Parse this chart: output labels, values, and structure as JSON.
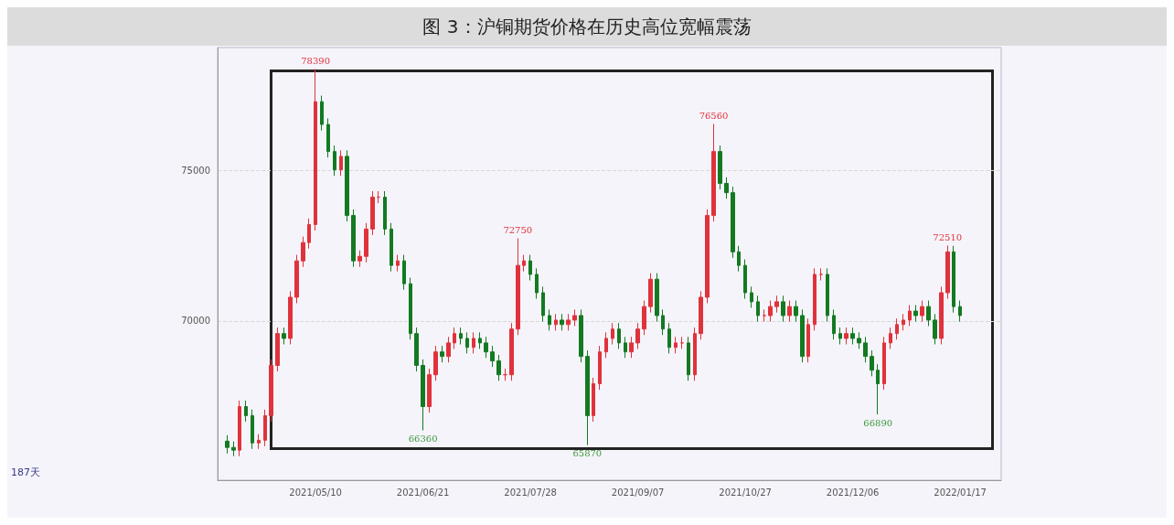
{
  "chart_data": {
    "type": "candlestick",
    "title": "图 3：沪铜期货价格在历史高位宽幅震荡",
    "categories": [
      null,
      null,
      null,
      null,
      null,
      null,
      null,
      null,
      null,
      null,
      null,
      null,
      null,
      null,
      "2021/05/10",
      null,
      null,
      null,
      null,
      null,
      null,
      null,
      null,
      null,
      null,
      null,
      null,
      null,
      null,
      null,
      null,
      "2021/06/21",
      null,
      null,
      null,
      null,
      null,
      null,
      null,
      null,
      null,
      null,
      null,
      null,
      null,
      null,
      null,
      null,
      "2021/07/28",
      null,
      null,
      null,
      null,
      null,
      null,
      null,
      null,
      null,
      null,
      null,
      null,
      null,
      null,
      null,
      null,
      "2021/09/07",
      null,
      null,
      null,
      null,
      null,
      null,
      null,
      null,
      null,
      null,
      null,
      null,
      null,
      null,
      null,
      null,
      "2021/10/27",
      null,
      null,
      null,
      null,
      null,
      null,
      null,
      null,
      null,
      null,
      null,
      null,
      null,
      null,
      null,
      null,
      "2021/12/06",
      null,
      null,
      null,
      null,
      null,
      null,
      null,
      null,
      null,
      null,
      null,
      null,
      null,
      null,
      null,
      null,
      "2022/01/17"
    ],
    "ohlc": [
      [
        66000,
        66200,
        65590,
        65790
      ],
      [
        65790,
        65990,
        65500,
        65700
      ],
      [
        65700,
        67350,
        65500,
        67150
      ],
      [
        67150,
        67350,
        66650,
        66850
      ],
      [
        66850,
        67050,
        65740,
        65940
      ],
      [
        65940,
        66230,
        65740,
        66030
      ],
      [
        66030,
        67050,
        65830,
        66850
      ],
      [
        66850,
        68720,
        66650,
        68520
      ],
      [
        68520,
        69780,
        68320,
        69580
      ],
      [
        69580,
        69780,
        69220,
        69420
      ],
      [
        69420,
        70990,
        69220,
        70790
      ],
      [
        70790,
        72200,
        70590,
        72000
      ],
      [
        72000,
        72810,
        71800,
        72610
      ],
      [
        72610,
        73410,
        72410,
        73210
      ],
      [
        73210,
        78390,
        73010,
        77300
      ],
      [
        77300,
        77500,
        76340,
        76540
      ],
      [
        76540,
        76740,
        75440,
        75640
      ],
      [
        75640,
        75840,
        74830,
        75030
      ],
      [
        75030,
        75680,
        74830,
        75480
      ],
      [
        75480,
        75680,
        73310,
        73510
      ],
      [
        73510,
        73710,
        71800,
        72000
      ],
      [
        72000,
        72350,
        71800,
        72150
      ],
      [
        72150,
        73260,
        71950,
        73060
      ],
      [
        73060,
        74320,
        72860,
        74120
      ],
      [
        74120,
        74320,
        73920,
        74120
      ],
      [
        74120,
        74320,
        72860,
        73060
      ],
      [
        73060,
        73260,
        71650,
        71850
      ],
      [
        71850,
        72200,
        71650,
        72000
      ],
      [
        72000,
        72200,
        71040,
        71240
      ],
      [
        71240,
        71440,
        69380,
        69580
      ],
      [
        69580,
        69780,
        68320,
        68520
      ],
      [
        68520,
        68720,
        66360,
        67150
      ],
      [
        67150,
        68410,
        66950,
        68210
      ],
      [
        68210,
        69170,
        68010,
        68970
      ],
      [
        68970,
        69170,
        68620,
        68820
      ],
      [
        68820,
        69470,
        68620,
        69270
      ],
      [
        69270,
        69780,
        69070,
        69580
      ],
      [
        69580,
        69780,
        69220,
        69420
      ],
      [
        69420,
        69620,
        68920,
        69120
      ],
      [
        69120,
        69620,
        68920,
        69420
      ],
      [
        69420,
        69620,
        69070,
        69270
      ],
      [
        69270,
        69470,
        68770,
        68970
      ],
      [
        68970,
        69170,
        68470,
        68670
      ],
      [
        68670,
        68870,
        68010,
        68210
      ],
      [
        68210,
        68410,
        68010,
        68210
      ],
      [
        68210,
        69930,
        68010,
        69730
      ],
      [
        69730,
        72750,
        69530,
        71850
      ],
      [
        71850,
        72200,
        71650,
        72000
      ],
      [
        72000,
        72200,
        71350,
        71550
      ],
      [
        71550,
        71750,
        70740,
        70940
      ],
      [
        70940,
        71140,
        69980,
        70180
      ],
      [
        70180,
        70380,
        69680,
        69880
      ],
      [
        69880,
        70230,
        69680,
        70030
      ],
      [
        70030,
        70230,
        69680,
        69880
      ],
      [
        69880,
        70230,
        69680,
        70030
      ],
      [
        70030,
        70380,
        69830,
        70180
      ],
      [
        70180,
        70380,
        68620,
        68820
      ],
      [
        68820,
        69020,
        65870,
        66850
      ],
      [
        66850,
        68110,
        66650,
        67910
      ],
      [
        67910,
        69170,
        67710,
        68970
      ],
      [
        68970,
        69620,
        68770,
        69420
      ],
      [
        69420,
        69930,
        69220,
        69730
      ],
      [
        69730,
        69930,
        69070,
        69270
      ],
      [
        69270,
        69470,
        68770,
        68970
      ],
      [
        68970,
        69470,
        68770,
        69270
      ],
      [
        69270,
        69930,
        69070,
        69730
      ],
      [
        69730,
        70680,
        69530,
        70480
      ],
      [
        70480,
        71590,
        70280,
        71390
      ],
      [
        71390,
        71590,
        69980,
        70180
      ],
      [
        70180,
        70380,
        69530,
        69730
      ],
      [
        69730,
        69930,
        68920,
        69120
      ],
      [
        69120,
        69470,
        68920,
        69270
      ],
      [
        69270,
        69470,
        69070,
        69270
      ],
      [
        69270,
        69470,
        68010,
        68210
      ],
      [
        68210,
        69780,
        68010,
        69580
      ],
      [
        69580,
        70990,
        69380,
        70790
      ],
      [
        70790,
        73710,
        70590,
        73510
      ],
      [
        73510,
        76560,
        73310,
        75640
      ],
      [
        75640,
        75840,
        74380,
        74580
      ],
      [
        74580,
        74780,
        74070,
        74270
      ],
      [
        74270,
        74470,
        72100,
        72300
      ],
      [
        72300,
        72500,
        71650,
        71850
      ],
      [
        71850,
        72050,
        70740,
        70940
      ],
      [
        70940,
        71140,
        70440,
        70640
      ],
      [
        70640,
        70840,
        69980,
        70180
      ],
      [
        70180,
        70380,
        69980,
        70180
      ],
      [
        70180,
        70680,
        69980,
        70480
      ],
      [
        70480,
        70840,
        70280,
        70640
      ],
      [
        70640,
        70840,
        69980,
        70180
      ],
      [
        70180,
        70680,
        69980,
        70480
      ],
      [
        70480,
        70680,
        69980,
        70180
      ],
      [
        70180,
        70380,
        68620,
        68820
      ],
      [
        68820,
        70080,
        68620,
        69880
      ],
      [
        69880,
        71750,
        69680,
        71550
      ],
      [
        71550,
        71750,
        71350,
        71550
      ],
      [
        71550,
        71750,
        69980,
        70180
      ],
      [
        70180,
        70380,
        69380,
        69580
      ],
      [
        69580,
        69780,
        69220,
        69420
      ],
      [
        69420,
        69780,
        69220,
        69580
      ],
      [
        69580,
        69780,
        69220,
        69420
      ],
      [
        69420,
        69620,
        69070,
        69270
      ],
      [
        69270,
        69470,
        68620,
        68820
      ],
      [
        68820,
        69020,
        68160,
        68360
      ],
      [
        68360,
        68560,
        66890,
        67910
      ],
      [
        67910,
        69470,
        67710,
        69270
      ],
      [
        69270,
        69780,
        69070,
        69580
      ],
      [
        69580,
        70080,
        69380,
        69880
      ],
      [
        69880,
        70230,
        69680,
        70030
      ],
      [
        70030,
        70530,
        69830,
        70330
      ],
      [
        70330,
        70530,
        69980,
        70180
      ],
      [
        70180,
        70680,
        69980,
        70480
      ],
      [
        70480,
        70680,
        69830,
        70030
      ],
      [
        70030,
        70230,
        69220,
        69420
      ],
      [
        69420,
        71140,
        69220,
        70940
      ],
      [
        70940,
        72510,
        70740,
        72300
      ],
      [
        72300,
        72500,
        70280,
        70480
      ],
      [
        70480,
        70680,
        69980,
        70180
      ]
    ],
    "ylim": [
      64700,
      79100
    ],
    "yticks": [
      70000,
      75000
    ],
    "grid": "y",
    "annotations": [
      {
        "text": "78390",
        "y": 78390
      },
      {
        "text": "66360",
        "y": 66360
      },
      {
        "text": "72750",
        "y": 72750
      },
      {
        "text": "65870",
        "y": 65870
      },
      {
        "text": "76560",
        "y": 76560
      },
      {
        "text": "66890",
        "y": 66890
      },
      {
        "text": "72510",
        "y": 72510
      },
      "187天"
    ]
  }
}
